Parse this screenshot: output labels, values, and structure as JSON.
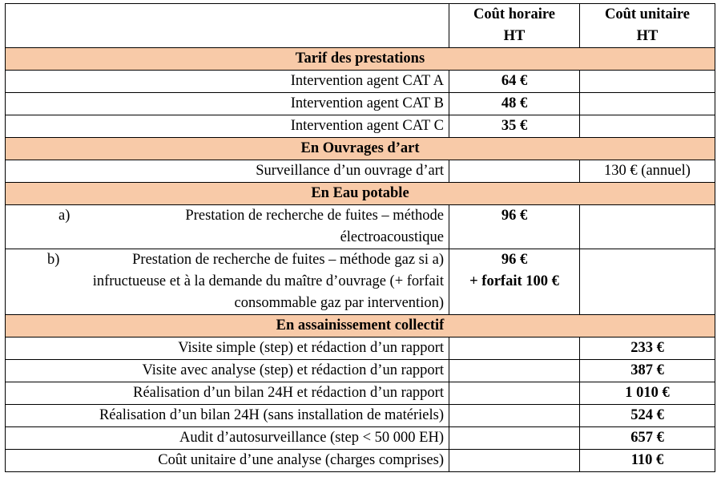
{
  "header": {
    "col_hourly_line1": "Coût horaire",
    "col_hourly_line2": "HT",
    "col_unit_line1": "Coût unitaire",
    "col_unit_line2": "HT"
  },
  "sections": {
    "tarif": {
      "title": "Tarif des prestations",
      "rows": [
        {
          "label": "Intervention agent CAT A",
          "hourly": "64 €"
        },
        {
          "label": "Intervention agent CAT B",
          "hourly": "48 €"
        },
        {
          "label": "Intervention agent CAT C",
          "hourly": "35 €"
        }
      ]
    },
    "ouvrages": {
      "title": "En Ouvrages d’art",
      "rows": [
        {
          "label": "Surveillance d’un ouvrage d’art",
          "unit": "130 € (annuel)"
        }
      ]
    },
    "eau": {
      "title": "En Eau potable",
      "item_a": {
        "marker": "a)",
        "text": "Prestation de recherche de fuites – méthode électroacoustique",
        "hourly": "96 €"
      },
      "item_b": {
        "marker": "b)",
        "text": "Prestation de recherche de fuites – méthode gaz si a) infructueuse et à la demande du maître d’ouvrage (+ forfait consommable gaz par intervention)",
        "hourly_line1": "96 €",
        "hourly_line2": "+ forfait 100 €"
      }
    },
    "assainissement": {
      "title": "En assainissement collectif",
      "rows": [
        {
          "label": "Visite simple (step) et rédaction d’un rapport",
          "unit": "233 €"
        },
        {
          "label": "Visite avec analyse (step) et rédaction d’un rapport",
          "unit": "387 €"
        },
        {
          "label": "Réalisation d’un bilan 24H et rédaction d’un rapport",
          "unit": "1 010 €"
        },
        {
          "label": "Réalisation d’un bilan 24H (sans installation de matériels)",
          "unit": "524 €"
        },
        {
          "label": "Audit d’autosurveillance (step < 50 000 EH)",
          "unit": "657 €"
        },
        {
          "label": "Coût unitaire d’une analyse (charges comprises)",
          "unit": "110 €"
        }
      ]
    }
  },
  "colors": {
    "section_background": "#f8caa8",
    "border": "#000000"
  }
}
